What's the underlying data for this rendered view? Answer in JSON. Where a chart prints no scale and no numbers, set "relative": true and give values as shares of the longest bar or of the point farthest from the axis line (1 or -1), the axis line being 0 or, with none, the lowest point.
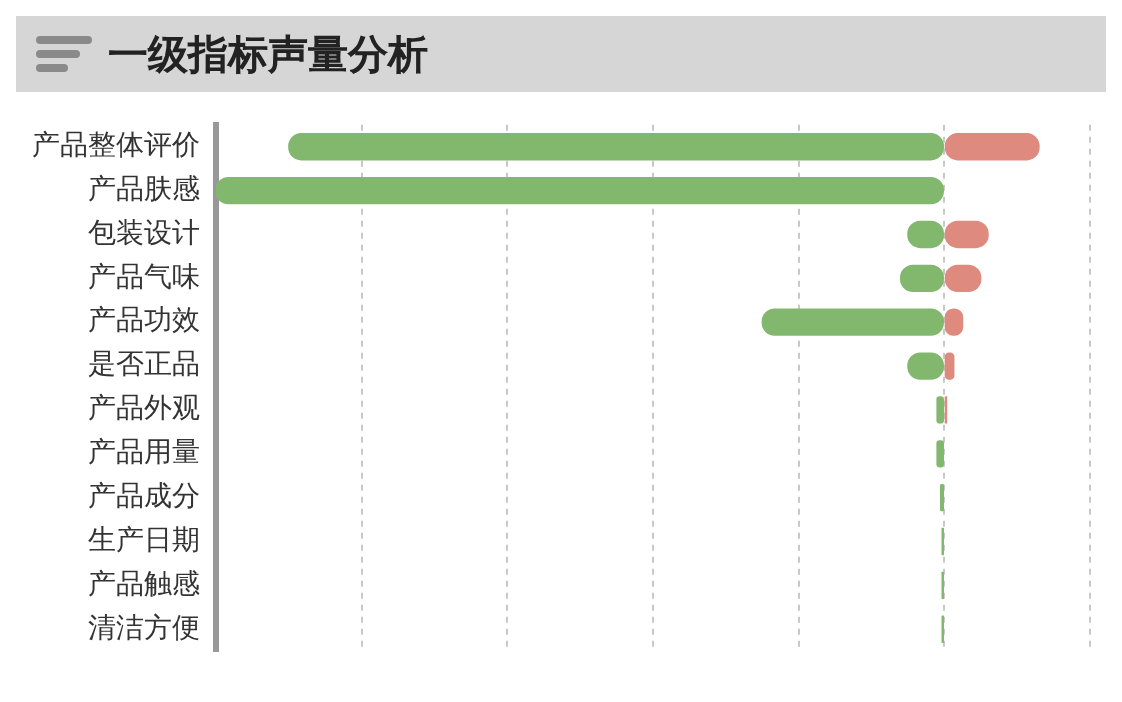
{
  "chart_data": {
    "type": "bar",
    "title": "一级指标声量分析",
    "orientation": "horizontal",
    "stacked": true,
    "relative": true,
    "grid": "x",
    "legend": false,
    "categories": [
      "产品整体评价",
      "产品肤感",
      "包装设计",
      "产品气味",
      "产品功效",
      "是否正品",
      "产品外观",
      "产品用量",
      "产品成分",
      "生产日期",
      "产品触感",
      "清洁方便"
    ],
    "series": [
      {
        "color": "#82b86e",
        "values": [
          -0.9,
          -1,
          -0.05,
          -0.06,
          -0.25,
          -0.05,
          -0.01,
          -0.01,
          -0.005,
          -0.003,
          -0.003,
          -0.003
        ]
      },
      {
        "color": "#de8a7e",
        "values": [
          0.13,
          null,
          0.06,
          0.05,
          0.025,
          0.013,
          0.003,
          null,
          null,
          null,
          null,
          null
        ]
      }
    ]
  }
}
